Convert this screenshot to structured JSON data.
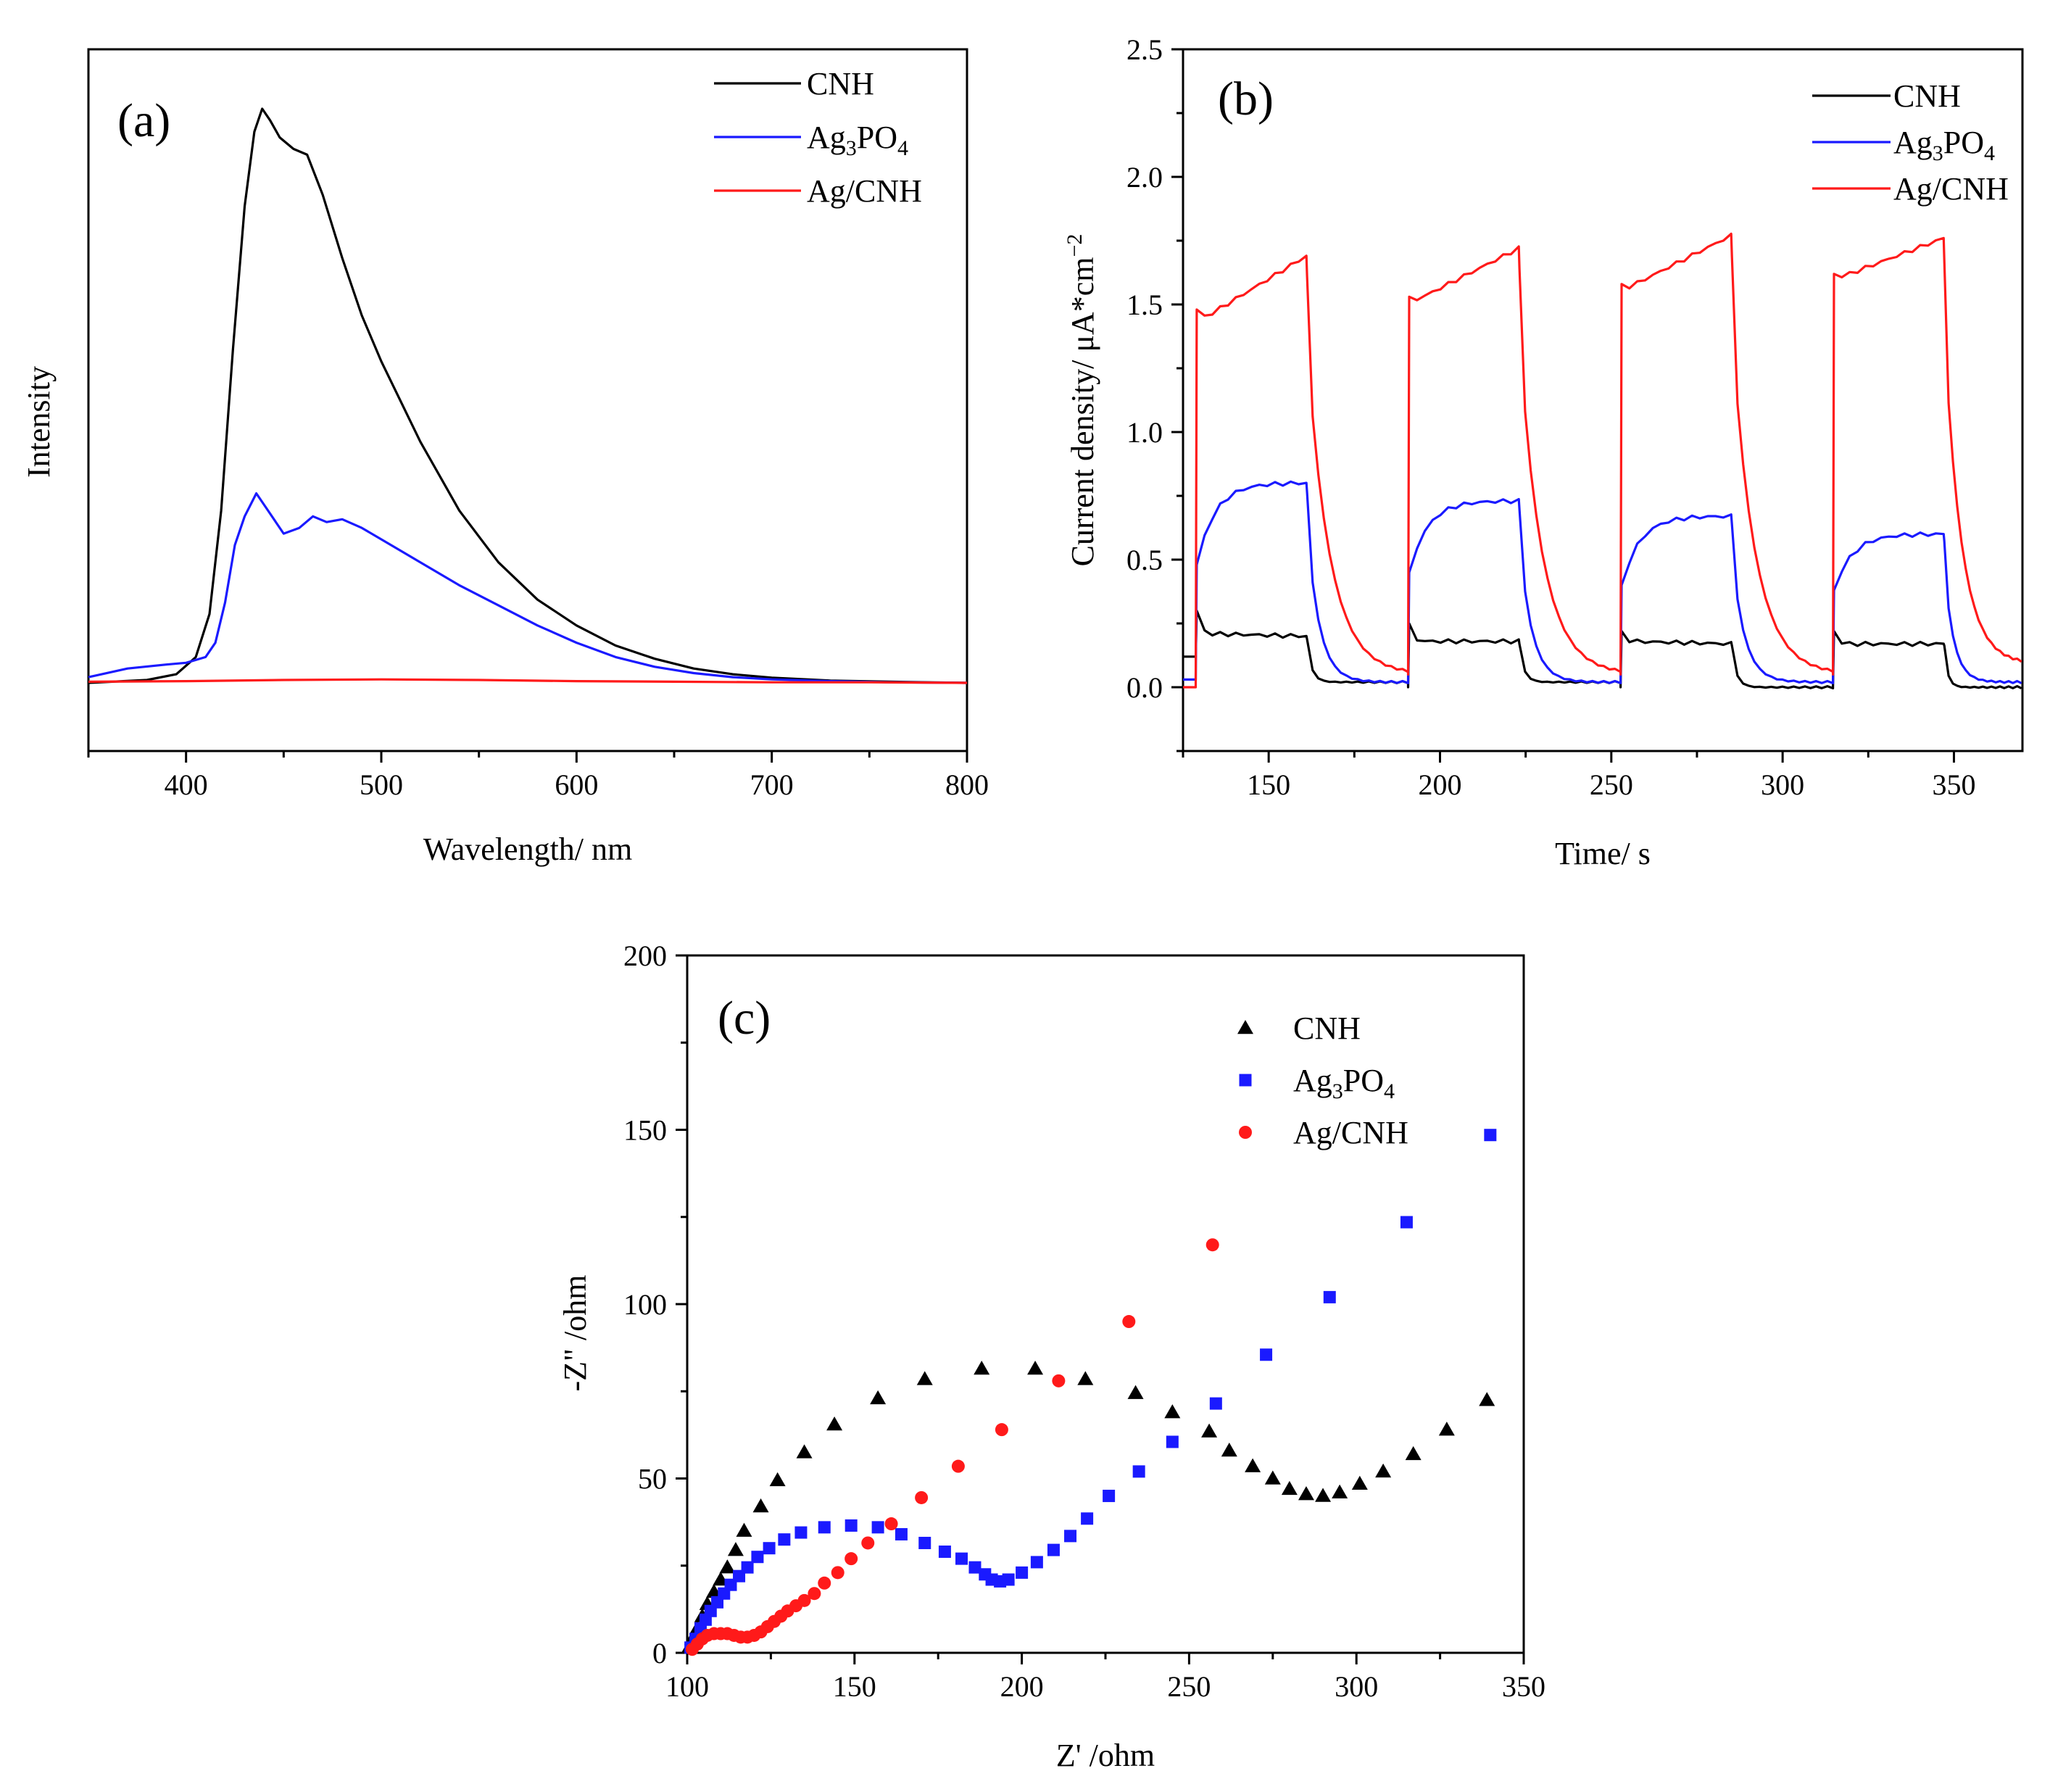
{
  "chart_data": [
    {
      "panel_label": "(a)",
      "type": "line",
      "title": "",
      "xlabel": "Wavelength/ nm",
      "ylabel": "Intensity",
      "xlim": [
        350,
        800
      ],
      "ylim": [
        0,
        1
      ],
      "xticks": [
        400,
        500,
        600,
        700,
        800
      ],
      "y_ticks_shown": false,
      "legend_position": "top-right",
      "series": [
        {
          "name": "CNH",
          "legend": [
            "CNH"
          ],
          "color": "#000000",
          "x": [
            350,
            380,
            395,
            405,
            412,
            418,
            424,
            430,
            435,
            439,
            443,
            448,
            455,
            462,
            470,
            480,
            490,
            500,
            520,
            540,
            560,
            580,
            600,
            620,
            640,
            660,
            680,
            700,
            730,
            760,
            800
          ],
          "y": [
            0.0,
            0.005,
            0.015,
            0.045,
            0.12,
            0.3,
            0.58,
            0.83,
            0.96,
            1.0,
            0.98,
            0.95,
            0.93,
            0.92,
            0.85,
            0.74,
            0.64,
            0.56,
            0.42,
            0.3,
            0.21,
            0.145,
            0.1,
            0.065,
            0.042,
            0.025,
            0.015,
            0.009,
            0.004,
            0.002,
            0.0
          ]
        },
        {
          "name": "Ag3PO4",
          "legend": [
            "Ag",
            "3",
            "PO",
            "4"
          ],
          "color": "#1a1aff",
          "x": [
            350,
            370,
            390,
            400,
            410,
            415,
            420,
            425,
            430,
            436,
            442,
            450,
            458,
            465,
            472,
            480,
            490,
            500,
            520,
            540,
            560,
            580,
            600,
            620,
            640,
            660,
            680,
            700,
            730,
            760,
            800
          ],
          "y": [
            0.01,
            0.025,
            0.032,
            0.035,
            0.045,
            0.07,
            0.14,
            0.24,
            0.29,
            0.33,
            0.3,
            0.26,
            0.27,
            0.29,
            0.28,
            0.285,
            0.27,
            0.25,
            0.21,
            0.17,
            0.135,
            0.1,
            0.07,
            0.045,
            0.028,
            0.017,
            0.01,
            0.006,
            0.003,
            0.001,
            0.0
          ]
        },
        {
          "name": "Ag/CNH",
          "legend": [
            "Ag/CNH"
          ],
          "color": "#ff1a1a",
          "x": [
            350,
            400,
            450,
            500,
            550,
            600,
            650,
            700,
            750,
            800
          ],
          "y": [
            0.002,
            0.003,
            0.005,
            0.006,
            0.005,
            0.003,
            0.002,
            0.001,
            0.001,
            0.0
          ]
        }
      ]
    },
    {
      "panel_label": "(b)",
      "type": "line",
      "title": "",
      "xlabel": "Time/ s",
      "ylabel": "Current density/ μA*cm",
      "ylabel_superscript": "−2",
      "xlim": [
        125,
        370
      ],
      "ylim": [
        -0.25,
        2.5
      ],
      "xticks": [
        150,
        200,
        250,
        300,
        350
      ],
      "xtick_labels": [
        "150",
        "200",
        "250",
        "300",
        "350"
      ],
      "yticks": [
        0.0,
        0.5,
        1.0,
        1.5,
        2.0,
        2.5
      ],
      "ytick_labels": [
        "0.0",
        "0.5",
        "1.0",
        "1.5",
        "2.0",
        "2.5"
      ],
      "light_on_off_cycles": [
        [
          129,
          161
        ],
        [
          191,
          223
        ],
        [
          253,
          285
        ],
        [
          315,
          347
        ]
      ],
      "legend_position": "top-right",
      "series": [
        {
          "name": "CNH",
          "legend": [
            "CNH"
          ],
          "color": "#000000",
          "dark_level": [
            0.12,
            0.0,
            0.0,
            0.0
          ],
          "on_start": [
            0.3,
            0.25,
            0.22,
            0.22
          ],
          "on_plateau": [
            0.21,
            0.18,
            0.18,
            0.17
          ],
          "on_end": [
            0.2,
            0.18,
            0.17,
            0.17
          ],
          "off_end": [
            0.02,
            0.02,
            0.0,
            0.0
          ]
        },
        {
          "name": "Ag3PO4",
          "legend": [
            "Ag",
            "3",
            "PO",
            "4"
          ],
          "color": "#1a1aff",
          "dark_level": [
            0.03,
            0.03,
            0.03,
            0.03
          ],
          "on_start": [
            0.48,
            0.45,
            0.4,
            0.38
          ],
          "on_plateau": [
            0.75,
            0.7,
            0.66,
            0.6
          ],
          "on_end": [
            0.8,
            0.73,
            0.67,
            0.6
          ],
          "off_end": [
            0.02,
            0.02,
            0.02,
            0.02
          ]
        },
        {
          "name": "Ag/CNH",
          "legend": [
            "Ag/CNH"
          ],
          "color": "#ff1a1a",
          "dark_level": [
            0.0,
            0.05,
            0.05,
            0.05
          ],
          "on_start": [
            1.48,
            1.53,
            1.58,
            1.62
          ],
          "on_plateau": [
            1.45,
            1.52,
            1.57,
            1.61
          ],
          "on_end": [
            1.69,
            1.72,
            1.77,
            1.76
          ],
          "off_end": [
            0.05,
            0.05,
            0.05,
            0.09
          ]
        }
      ]
    },
    {
      "panel_label": "(c)",
      "type": "scatter",
      "title": "",
      "xlabel": "Z' /ohm",
      "ylabel": "-Z\" /ohm",
      "xlim": [
        100,
        350
      ],
      "ylim": [
        0,
        200
      ],
      "xticks": [
        100,
        150,
        200,
        250,
        300,
        350
      ],
      "yticks": [
        0,
        50,
        100,
        150,
        200
      ],
      "legend_position": "top-right",
      "series": [
        {
          "name": "CNH",
          "legend": [
            "CNH"
          ],
          "marker": "triangle",
          "color": "#000000",
          "x": [
            100.5,
            101.5,
            103,
            104.5,
            106,
            108,
            110,
            112,
            114.5,
            117,
            122,
            127,
            135,
            144,
            157,
            171,
            188,
            204,
            219,
            234,
            245,
            256,
            262,
            269,
            275,
            280,
            285,
            290,
            295,
            301,
            308,
            317,
            327,
            339
          ],
          "y": [
            1.5,
            4,
            7,
            10.5,
            14,
            17.5,
            21,
            24.5,
            29.5,
            35,
            42,
            49.5,
            57.5,
            65.5,
            73,
            78.5,
            81.5,
            81.5,
            78.5,
            74.5,
            69,
            63.5,
            58,
            53.5,
            50,
            47,
            45.5,
            45,
            46,
            48.5,
            52,
            57,
            64,
            72.5
          ]
        },
        {
          "name": "Ag3PO4",
          "legend": [
            "Ag",
            "3",
            "PO",
            "4"
          ],
          "marker": "square",
          "color": "#1a1aff",
          "x": [
            101,
            102.5,
            104,
            105.5,
            107,
            109,
            111,
            113,
            115.5,
            118,
            121,
            124.5,
            129,
            134,
            141,
            149,
            157,
            164,
            171,
            177,
            182,
            186,
            189,
            191,
            193.5,
            196,
            200,
            204.5,
            209.5,
            214.5,
            219.5,
            226,
            235,
            245,
            258,
            273,
            292,
            315,
            340
          ],
          "y": [
            1.5,
            4,
            7,
            9.5,
            12,
            14.5,
            17,
            19.5,
            22,
            24.5,
            27.5,
            30,
            32.5,
            34.5,
            36,
            36.5,
            36,
            34,
            31.5,
            29,
            27,
            24.5,
            22.5,
            21,
            20.5,
            21,
            23,
            26,
            29.5,
            33.5,
            38.5,
            45,
            52,
            60.5,
            71.5,
            85.5,
            102,
            123.5,
            148.5
          ]
        },
        {
          "name": "Ag/CNH",
          "legend": [
            "Ag/CNH"
          ],
          "marker": "circle",
          "color": "#ff1a1a",
          "x": [
            101.5,
            103,
            104.5,
            106,
            108,
            110,
            112,
            114,
            116,
            118,
            120,
            122,
            124,
            126,
            128,
            130,
            132.5,
            135,
            138,
            141,
            145,
            149,
            154,
            161,
            170,
            181,
            194,
            211,
            232,
            257
          ],
          "y": [
            1,
            2.5,
            4,
            5,
            5.5,
            5.5,
            5.5,
            5,
            4.5,
            4.5,
            5,
            6,
            7.5,
            9,
            10.5,
            12,
            13.5,
            15,
            17,
            20,
            23,
            27,
            31.5,
            37,
            44.5,
            53.5,
            64,
            78,
            95,
            117
          ]
        }
      ]
    }
  ]
}
